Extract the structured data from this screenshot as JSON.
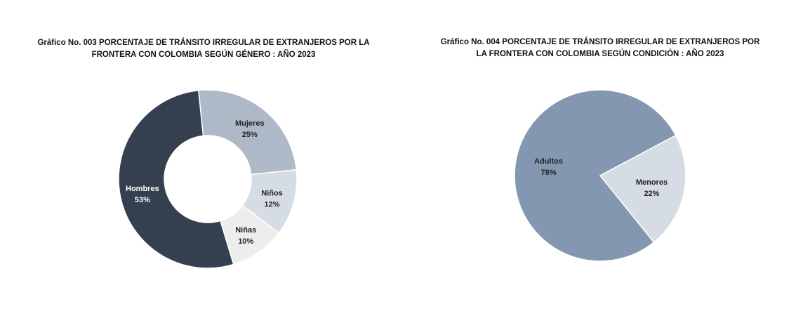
{
  "chart_data": [
    {
      "type": "pie",
      "variant": "donut",
      "title": "Gráfico No. 003  PORCENTAJE DE TRÁNSITO IRREGULAR DE EXTRANJEROS POR LA FRONTERA CON COLOMBIA SEGÚN GÉNERO : AÑO 2023",
      "slices": [
        {
          "label": "Mujeres",
          "value": 25,
          "text": "25%",
          "color": "#adb9c7",
          "text_color": "#222"
        },
        {
          "label": "Niños",
          "value": 12,
          "text": "12%",
          "color": "#d6dce4",
          "text_color": "#222"
        },
        {
          "label": "Niñas",
          "value": 10,
          "text": "10%",
          "color": "#ededed",
          "text_color": "#222"
        },
        {
          "label": "Hombres",
          "value": 53,
          "text": "53%",
          "color": "#344050",
          "text_color": "#fff"
        }
      ]
    },
    {
      "type": "pie",
      "title": "Gráfico No. 004  PORCENTAJE DE TRÁNSITO IRREGULAR DE EXTRANJEROS POR LA FRONTERA CON COLOMBIA SEGÚN CONDICIÓN : AÑO 2023",
      "slices": [
        {
          "label": "Menores",
          "value": 22,
          "text": "22%",
          "color": "#d6dce4",
          "text_color": "#222"
        },
        {
          "label": "Adultos",
          "value": 78,
          "text": "78%",
          "color": "#8497b0",
          "text_color": "#222"
        }
      ]
    }
  ]
}
